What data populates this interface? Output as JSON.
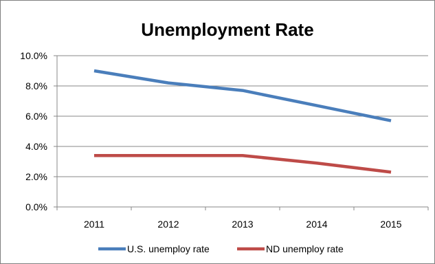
{
  "chart_data": {
    "type": "line",
    "title": "Unemployment Rate",
    "xlabel": "",
    "ylabel": "",
    "categories": [
      "2011",
      "2012",
      "2013",
      "2014",
      "2015"
    ],
    "ylim": [
      0,
      10
    ],
    "y_tick_values": [
      0,
      2,
      4,
      6,
      8,
      10
    ],
    "y_tick_labels": [
      "0.0%",
      "2.0%",
      "4.0%",
      "6.0%",
      "8.0%",
      "10.0%"
    ],
    "grid": true,
    "legend_position": "bottom",
    "series": [
      {
        "name": "U.S. unemploy rate",
        "color": "#4a7ebb",
        "values": [
          9.0,
          8.2,
          7.7,
          6.7,
          5.7
        ]
      },
      {
        "name": "ND unemploy rate",
        "color": "#be4b48",
        "values": [
          3.4,
          3.4,
          3.4,
          2.9,
          2.3
        ]
      }
    ]
  }
}
